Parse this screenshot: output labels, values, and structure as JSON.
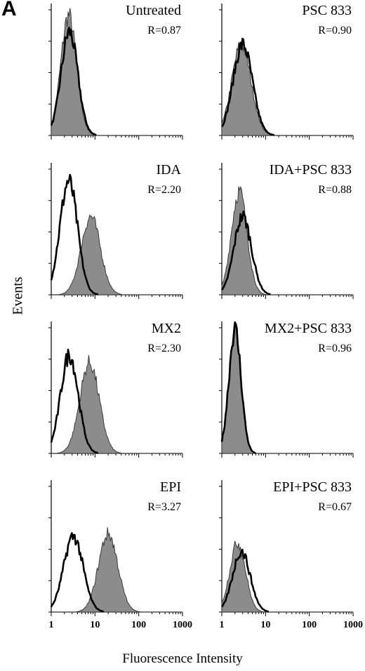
{
  "figure": {
    "panel_letter": "A",
    "ylabel": "Events",
    "xlabel": "Fluorescence Intensity",
    "xticklabels": [
      "1",
      "10",
      "100",
      "1000"
    ]
  },
  "chart_data": [
    {
      "type": "area",
      "title": "Untreated",
      "ratio_label": "R=0.87",
      "x_scale": "log",
      "xlim": [
        1,
        1000
      ],
      "series": [
        {
          "fill": "gray",
          "peak": 2.5,
          "spread": 0.18,
          "height": 0.95
        },
        {
          "fill": "none",
          "peak": 2.6,
          "spread": 0.19,
          "height": 0.82
        }
      ]
    },
    {
      "type": "area",
      "title": "PSC 833",
      "ratio_label": "R=0.90",
      "x_scale": "log",
      "xlim": [
        1,
        1000
      ],
      "series": [
        {
          "fill": "gray",
          "peak": 2.8,
          "spread": 0.22,
          "height": 0.72
        },
        {
          "fill": "none",
          "peak": 3.0,
          "spread": 0.22,
          "height": 0.72
        }
      ]
    },
    {
      "type": "area",
      "title": "IDA",
      "ratio_label": "R=2.20",
      "x_scale": "log",
      "xlim": [
        1,
        1000
      ],
      "series": [
        {
          "fill": "gray",
          "peak": 8.0,
          "spread": 0.22,
          "height": 0.62
        },
        {
          "fill": "none",
          "peak": 2.5,
          "spread": 0.2,
          "height": 0.9
        }
      ]
    },
    {
      "type": "area",
      "title": "IDA+PSC 833",
      "ratio_label": "R=0.88",
      "x_scale": "log",
      "xlim": [
        1,
        1000
      ],
      "series": [
        {
          "fill": "gray",
          "peak": 2.5,
          "spread": 0.18,
          "height": 0.82
        },
        {
          "fill": "none",
          "peak": 3.0,
          "spread": 0.2,
          "height": 0.62
        }
      ]
    },
    {
      "type": "area",
      "title": "MX2",
      "ratio_label": "R=2.30",
      "x_scale": "log",
      "xlim": [
        1,
        1000
      ],
      "series": [
        {
          "fill": "gray",
          "peak": 7.5,
          "spread": 0.22,
          "height": 0.72
        },
        {
          "fill": "none",
          "peak": 2.6,
          "spread": 0.2,
          "height": 0.78
        }
      ]
    },
    {
      "type": "area",
      "title": "MX2+PSC 833",
      "ratio_label": "R=0.96",
      "x_scale": "log",
      "xlim": [
        1,
        1000
      ],
      "series": [
        {
          "fill": "gray",
          "peak": 2.0,
          "spread": 0.14,
          "height": 1.0
        },
        {
          "fill": "none",
          "peak": 2.0,
          "spread": 0.14,
          "height": 0.98
        }
      ]
    },
    {
      "type": "area",
      "title": "EPI",
      "ratio_label": "R=3.27",
      "x_scale": "log",
      "xlim": [
        1,
        1000
      ],
      "series": [
        {
          "fill": "gray",
          "peak": 20.0,
          "spread": 0.22,
          "height": 0.62
        },
        {
          "fill": "none",
          "peak": 3.2,
          "spread": 0.22,
          "height": 0.6
        }
      ]
    },
    {
      "type": "area",
      "title": "EPI+PSC 833",
      "ratio_label": "R=0.67",
      "x_scale": "log",
      "xlim": [
        1,
        1000
      ],
      "series": [
        {
          "fill": "gray",
          "peak": 2.3,
          "spread": 0.18,
          "height": 0.55
        },
        {
          "fill": "none",
          "peak": 2.8,
          "spread": 0.2,
          "height": 0.48
        }
      ]
    }
  ]
}
